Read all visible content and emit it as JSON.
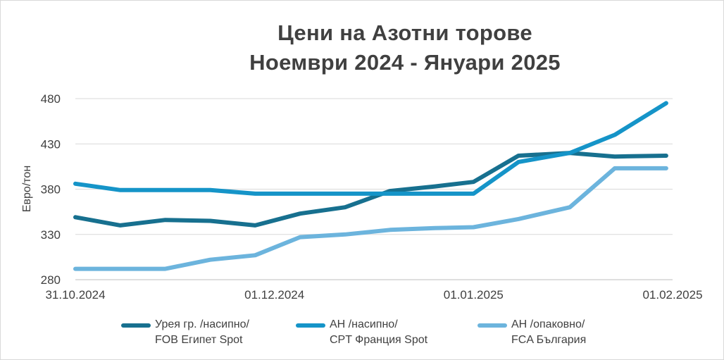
{
  "chart_data": {
    "type": "line",
    "title_line1": "Цени на Азотни торове",
    "title_line2": "Ноември 2024 - Януари 2025",
    "ylabel": "Евро/тон",
    "ylim": [
      280,
      480
    ],
    "yticks": [
      280,
      330,
      380,
      430,
      480
    ],
    "xlim": [
      "31.10.2024",
      "01.02.2025"
    ],
    "xticks": [
      "31.10.2024",
      "01.12.2024",
      "01.01.2025",
      "01.02.2025"
    ],
    "grid": true,
    "legend_position": "bottom",
    "series": [
      {
        "name_line1": "Урея гр. /насипно/",
        "name_line2": "FOB Египет Spot",
        "color": "#17708f",
        "points": [
          [
            "2024-10-31",
            349
          ],
          [
            "2024-11-07",
            340
          ],
          [
            "2024-11-14",
            346
          ],
          [
            "2024-11-21",
            345
          ],
          [
            "2024-11-28",
            340
          ],
          [
            "2024-12-05",
            353
          ],
          [
            "2024-12-12",
            360
          ],
          [
            "2024-12-19",
            378
          ],
          [
            "2024-12-26",
            383
          ],
          [
            "2025-01-01",
            388
          ],
          [
            "2025-01-08",
            417
          ],
          [
            "2025-01-16",
            420
          ],
          [
            "2025-01-23",
            416
          ],
          [
            "2025-01-31",
            417
          ]
        ]
      },
      {
        "name_line1": "АН  /насипно/",
        "name_line2": "CPT Франция Spot",
        "color": "#1594c8",
        "points": [
          [
            "2024-10-31",
            386
          ],
          [
            "2024-11-07",
            379
          ],
          [
            "2024-11-14",
            379
          ],
          [
            "2024-11-21",
            379
          ],
          [
            "2024-11-28",
            375
          ],
          [
            "2024-12-05",
            375
          ],
          [
            "2024-12-12",
            375
          ],
          [
            "2024-12-19",
            375
          ],
          [
            "2024-12-26",
            375
          ],
          [
            "2025-01-01",
            375
          ],
          [
            "2025-01-08",
            410
          ],
          [
            "2025-01-16",
            420
          ],
          [
            "2025-01-23",
            440
          ],
          [
            "2025-01-31",
            475
          ]
        ]
      },
      {
        "name_line1": "АН  /опаковно/",
        "name_line2": "FCA България",
        "color": "#6cb4dd",
        "points": [
          [
            "2024-10-31",
            292
          ],
          [
            "2024-11-07",
            292
          ],
          [
            "2024-11-14",
            292
          ],
          [
            "2024-11-21",
            302
          ],
          [
            "2024-11-28",
            307
          ],
          [
            "2024-12-05",
            327
          ],
          [
            "2024-12-12",
            330
          ],
          [
            "2024-12-19",
            335
          ],
          [
            "2024-12-26",
            337
          ],
          [
            "2025-01-01",
            338
          ],
          [
            "2025-01-08",
            347
          ],
          [
            "2025-01-16",
            360
          ],
          [
            "2025-01-23",
            403
          ],
          [
            "2025-01-31",
            403
          ]
        ]
      }
    ]
  }
}
